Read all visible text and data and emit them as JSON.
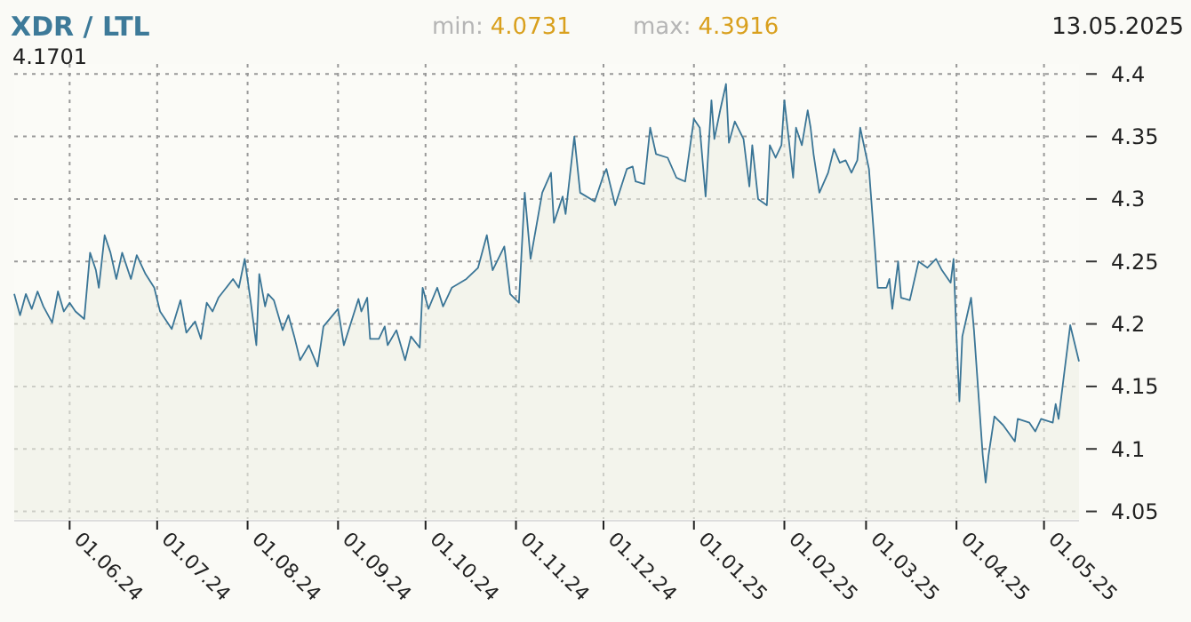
{
  "chart_data": {
    "type": "area",
    "title": "XDR / LTL",
    "annotations": [
      "min: 4.0731",
      "max: 4.3916",
      "13.05.2025",
      "4.1701"
    ],
    "x": [
      "2024-05-13",
      "2024-05-15",
      "2024-05-17",
      "2024-05-19",
      "2024-05-21",
      "2024-05-23",
      "2024-05-26",
      "2024-05-28",
      "2024-05-30",
      "2024-06-01",
      "2024-06-03",
      "2024-06-06",
      "2024-06-08",
      "2024-06-10",
      "2024-06-11",
      "2024-06-13",
      "2024-06-15",
      "2024-06-17",
      "2024-06-19",
      "2024-06-22",
      "2024-06-24",
      "2024-06-27",
      "2024-06-30",
      "2024-07-02",
      "2024-07-06",
      "2024-07-09",
      "2024-07-11",
      "2024-07-14",
      "2024-07-16",
      "2024-07-18",
      "2024-07-20",
      "2024-07-22",
      "2024-07-27",
      "2024-07-29",
      "2024-07-31",
      "2024-08-02",
      "2024-08-04",
      "2024-08-05",
      "2024-08-07",
      "2024-08-08",
      "2024-08-10",
      "2024-08-13",
      "2024-08-15",
      "2024-08-17",
      "2024-08-19",
      "2024-08-22",
      "2024-08-25",
      "2024-08-27",
      "2024-09-01",
      "2024-09-03",
      "2024-09-08",
      "2024-09-09",
      "2024-09-11",
      "2024-09-12",
      "2024-09-15",
      "2024-09-17",
      "2024-09-18",
      "2024-09-21",
      "2024-09-24",
      "2024-09-26",
      "2024-09-29",
      "2024-09-30",
      "2024-10-02",
      "2024-10-05",
      "2024-10-07",
      "2024-10-10",
      "2024-10-15",
      "2024-10-19",
      "2024-10-22",
      "2024-10-24",
      "2024-10-28",
      "2024-10-30",
      "2024-11-02",
      "2024-11-04",
      "2024-11-06",
      "2024-11-10",
      "2024-11-13",
      "2024-11-14",
      "2024-11-17",
      "2024-11-18",
      "2024-11-21",
      "2024-11-23",
      "2024-11-28",
      "2024-12-01",
      "2024-12-02",
      "2024-12-05",
      "2024-12-09",
      "2024-12-11",
      "2024-12-12",
      "2024-12-15",
      "2024-12-17",
      "2024-12-19",
      "2024-12-23",
      "2024-12-26",
      "2024-12-29",
      "2025-01-01",
      "2025-01-03",
      "2025-01-05",
      "2025-01-07",
      "2025-01-08",
      "2025-01-10",
      "2025-01-12",
      "2025-01-13",
      "2025-01-15",
      "2025-01-18",
      "2025-01-20",
      "2025-01-21",
      "2025-01-23",
      "2025-01-26",
      "2025-01-27",
      "2025-01-29",
      "2025-01-31",
      "2025-02-01",
      "2025-02-04",
      "2025-02-05",
      "2025-02-07",
      "2025-02-09",
      "2025-02-10",
      "2025-02-11",
      "2025-02-13",
      "2025-02-16",
      "2025-02-18",
      "2025-02-20",
      "2025-02-22",
      "2025-02-24",
      "2025-02-26",
      "2025-02-27",
      "2025-03-02",
      "2025-03-04",
      "2025-03-05",
      "2025-03-08",
      "2025-03-09",
      "2025-03-10",
      "2025-03-12",
      "2025-03-13",
      "2025-03-16",
      "2025-03-19",
      "2025-03-22",
      "2025-03-25",
      "2025-03-27",
      "2025-03-30",
      "2025-03-31",
      "2025-04-01",
      "2025-04-02",
      "2025-04-03",
      "2025-04-06",
      "2025-04-07",
      "2025-04-10",
      "2025-04-11",
      "2025-04-12",
      "2025-04-14",
      "2025-04-17",
      "2025-04-21",
      "2025-04-22",
      "2025-04-26",
      "2025-04-28",
      "2025-04-30",
      "2025-05-04",
      "2025-05-05",
      "2025-05-06",
      "2025-05-08",
      "2025-05-10",
      "2025-05-13"
    ],
    "series": [
      {
        "color": "#3a7596",
        "values": [
          4.224,
          4.207,
          4.224,
          4.212,
          4.226,
          4.214,
          4.201,
          4.226,
          4.21,
          4.217,
          4.21,
          4.204,
          4.257,
          4.243,
          4.229,
          4.271,
          4.257,
          4.236,
          4.257,
          4.236,
          4.255,
          4.24,
          4.229,
          4.21,
          4.196,
          4.219,
          4.193,
          4.202,
          4.188,
          4.217,
          4.21,
          4.221,
          4.236,
          4.229,
          4.252,
          4.219,
          4.183,
          4.24,
          4.214,
          4.224,
          4.219,
          4.195,
          4.207,
          4.19,
          4.171,
          4.183,
          4.166,
          4.198,
          4.212,
          4.183,
          4.22,
          4.21,
          4.221,
          4.188,
          4.188,
          4.198,
          4.183,
          4.195,
          4.171,
          4.19,
          4.181,
          4.229,
          4.212,
          4.229,
          4.214,
          4.229,
          4.236,
          4.245,
          4.271,
          4.243,
          4.262,
          4.224,
          4.217,
          4.305,
          4.252,
          4.305,
          4.321,
          4.281,
          4.302,
          4.288,
          4.35,
          4.305,
          4.298,
          4.319,
          4.324,
          4.295,
          4.324,
          4.326,
          4.314,
          4.312,
          4.357,
          4.336,
          4.333,
          4.317,
          4.314,
          4.364,
          4.357,
          4.302,
          4.379,
          4.348,
          4.371,
          4.392,
          4.345,
          4.362,
          4.348,
          4.31,
          4.343,
          4.3,
          4.295,
          4.343,
          4.333,
          4.343,
          4.379,
          4.317,
          4.357,
          4.343,
          4.371,
          4.357,
          4.336,
          4.305,
          4.321,
          4.34,
          4.329,
          4.331,
          4.321,
          4.331,
          4.357,
          4.324,
          4.262,
          4.229,
          4.229,
          4.236,
          4.212,
          4.25,
          4.221,
          4.219,
          4.25,
          4.245,
          4.252,
          4.243,
          4.233,
          4.252,
          4.19,
          4.138,
          4.19,
          4.221,
          4.195,
          4.095,
          4.073,
          4.095,
          4.126,
          4.119,
          4.106,
          4.124,
          4.121,
          4.114,
          4.124,
          4.121,
          4.136,
          4.124,
          4.162,
          4.199,
          4.17
        ]
      }
    ],
    "xlim": [
      "2024-05-13",
      "2025-05-13"
    ],
    "xticks": [
      {
        "value": "2024-06-01",
        "label": "01.06.24"
      },
      {
        "value": "2024-07-01",
        "label": "01.07.24"
      },
      {
        "value": "2024-08-01",
        "label": "01.08.24"
      },
      {
        "value": "2024-09-01",
        "label": "01.09.24"
      },
      {
        "value": "2024-10-01",
        "label": "01.10.24"
      },
      {
        "value": "2024-11-01",
        "label": "01.11.24"
      },
      {
        "value": "2024-12-01",
        "label": "01.12.24"
      },
      {
        "value": "2025-01-01",
        "label": "01.01.25"
      },
      {
        "value": "2025-02-01",
        "label": "01.02.25"
      },
      {
        "value": "2025-03-01",
        "label": "01.03.25"
      },
      {
        "value": "2025-04-01",
        "label": "01.04.25"
      },
      {
        "value": "2025-05-01",
        "label": "01.05.25"
      }
    ],
    "ylim": [
      4.044,
      4.408
    ],
    "yticks": [
      4.05,
      4.1,
      4.15,
      4.2,
      4.25,
      4.3,
      4.35,
      4.4
    ],
    "grid": true
  }
}
